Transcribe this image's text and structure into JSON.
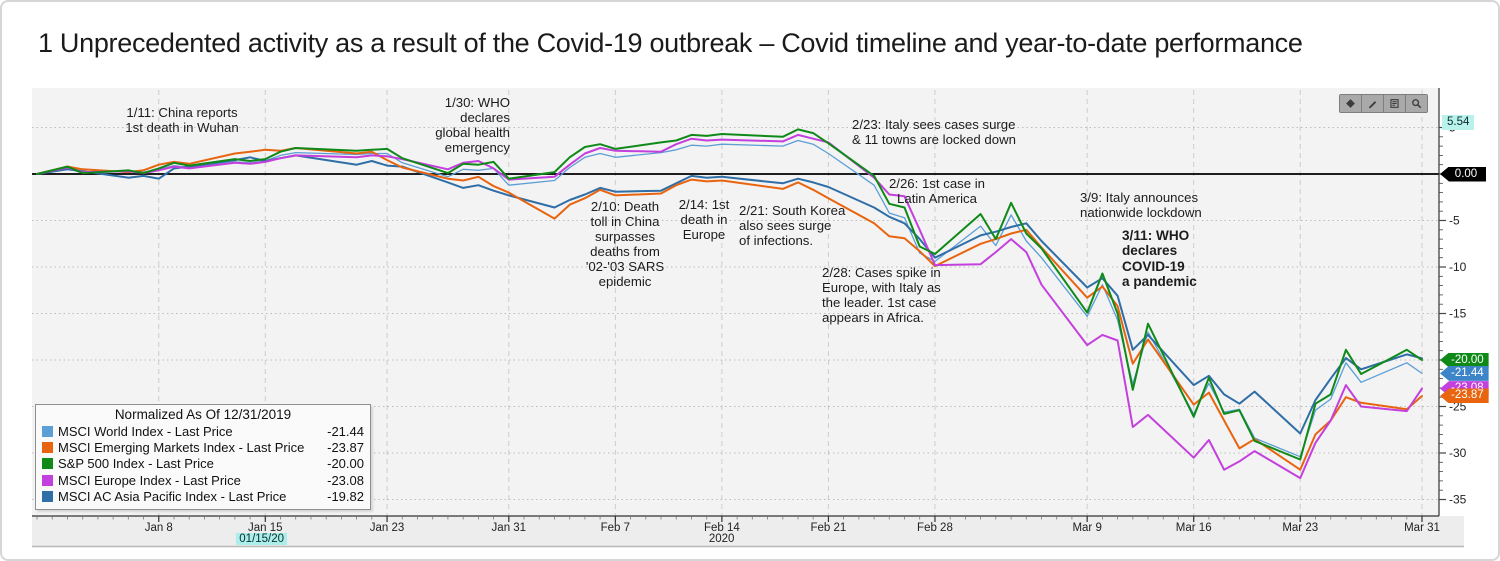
{
  "title": "1 Unprecedented activity as a result of the Covid-19 outbreak – Covid timeline and year-to-date performance",
  "toolbar": {
    "icons": [
      "diamond-icon",
      "pencil-icon",
      "note-icon",
      "magnifier-icon"
    ]
  },
  "annotations": [
    {
      "id": "1/11",
      "text": "1/11: China reports\n1st death in Wuhan"
    },
    {
      "id": "1/30",
      "text": "1/30: WHO\ndeclares\nglobal health\nemergency"
    },
    {
      "id": "2/10",
      "text": "2/10: Death\ntoll in China\nsurpasses\ndeaths from\n'02-'03 SARS\nepidemic"
    },
    {
      "id": "2/14",
      "text": "2/14: 1st\ndeath in\nEurope"
    },
    {
      "id": "2/21",
      "text": "2/21: South Korea\nalso sees surge\nof infections."
    },
    {
      "id": "2/23",
      "text": "2/23: Italy sees cases surge\n& 11 towns are locked down"
    },
    {
      "id": "2/26",
      "text": "2/26: 1st case in\nLatin America"
    },
    {
      "id": "2/28",
      "text": "2/28: Cases spike in\nEurope, with Italy as\nthe leader. 1st case\nappears in Africa."
    },
    {
      "id": "3/9",
      "text": "3/9: Italy announces\nnationwide lockdown"
    },
    {
      "id": "3/11",
      "text": "3/11: WHO\ndeclares\nCOVID-19\na pandemic"
    }
  ],
  "legend": {
    "title": "Normalized As Of 12/31/2019",
    "rows": [
      {
        "label": "MSCI World Index - Last Price",
        "value": "-21.44",
        "color": "#5c9fd6"
      },
      {
        "label": "MSCI Emerging Markets Index - Last Price",
        "value": "-23.87",
        "color": "#e8640e"
      },
      {
        "label": "S&P 500 Index - Last Price",
        "value": "-20.00",
        "color": "#0f8a19"
      },
      {
        "label": "MSCI Europe Index - Last Price",
        "value": "-23.08",
        "color": "#c440dd"
      },
      {
        "label": "MSCI AC Asia Pacific Index - Last Price",
        "value": "-19.82",
        "color": "#2f6ea6"
      }
    ]
  },
  "chart_data": {
    "type": "line",
    "title": "Covid timeline and year-to-date performance",
    "normalized_as_of": "12/31/2019",
    "ylim": [
      -35,
      5.54
    ],
    "x": [
      "12/31",
      "1/2",
      "1/3",
      "1/6",
      "1/7",
      "1/8",
      "1/9",
      "1/10",
      "1/13",
      "1/14",
      "1/15",
      "1/16",
      "1/17",
      "1/21",
      "1/22",
      "1/23",
      "1/24",
      "1/27",
      "1/28",
      "1/29",
      "1/30",
      "1/31",
      "2/3",
      "2/4",
      "2/5",
      "2/6",
      "2/7",
      "2/10",
      "2/11",
      "2/12",
      "2/13",
      "2/14",
      "2/18",
      "2/19",
      "2/20",
      "2/21",
      "2/24",
      "2/25",
      "2/26",
      "2/27",
      "2/28",
      "3/2",
      "3/3",
      "3/4",
      "3/5",
      "3/6",
      "3/9",
      "3/10",
      "3/11",
      "3/12",
      "3/13",
      "3/16",
      "3/17",
      "3/18",
      "3/19",
      "3/20",
      "3/23",
      "3/24",
      "3/25",
      "3/26",
      "3/27",
      "3/30",
      "3/31"
    ],
    "series": [
      {
        "name": "MSCI World Index - Last Price",
        "color": "#5c9fd6",
        "width": 1.3,
        "z": 1,
        "last": -21.44,
        "values": [
          0,
          0.6,
          0.1,
          0.3,
          0.2,
          0.5,
          0.9,
          0.7,
          1.3,
          1.2,
          1.4,
          2.0,
          2.3,
          2.1,
          2.2,
          2.2,
          1.2,
          -0.3,
          0.5,
          0.4,
          0.6,
          -1.2,
          -0.7,
          0.7,
          1.8,
          2.2,
          1.8,
          2.3,
          2.6,
          3.1,
          3.0,
          3.2,
          3.0,
          3.6,
          3.2,
          2.2,
          -1.2,
          -4.2,
          -4.7,
          -8.5,
          -9.4,
          -5.6,
          -7.7,
          -4.4,
          -7.2,
          -9.0,
          -15.3,
          -11.9,
          -15.7,
          -22.6,
          -17.0,
          -25.8,
          -22.5,
          -25.6,
          -25.3,
          -28.4,
          -30.4,
          -25.4,
          -24.2,
          -20.3,
          -22.4,
          -20.3,
          -21.44
        ]
      },
      {
        "name": "MSCI AC Asia Pacific Index - Last Price",
        "color": "#2f6ea6",
        "width": 2,
        "z": 2,
        "last": -19.82,
        "values": [
          0,
          0.5,
          0.3,
          -0.4,
          -0.2,
          -0.5,
          0.6,
          0.8,
          1.5,
          1.8,
          1.4,
          1.7,
          2.0,
          1.0,
          1.4,
          0.9,
          0.8,
          -0.9,
          -1.5,
          -1.2,
          -1.8,
          -2.3,
          -3.6,
          -2.8,
          -2.2,
          -1.5,
          -1.9,
          -1.8,
          -1.0,
          -0.2,
          -0.4,
          -0.3,
          -1.0,
          -0.5,
          -0.9,
          -1.4,
          -3.6,
          -4.6,
          -5.3,
          -7.0,
          -9.0,
          -6.6,
          -6.2,
          -5.7,
          -5.3,
          -7.2,
          -12.2,
          -11.2,
          -13.1,
          -18.9,
          -17.3,
          -22.7,
          -21.7,
          -23.7,
          -24.7,
          -23.4,
          -27.9,
          -24.3,
          -22.0,
          -19.8,
          -21.0,
          -19.4,
          -19.82
        ]
      },
      {
        "name": "MSCI Emerging Markets Index - Last Price",
        "color": "#e8640e",
        "width": 2,
        "z": 3,
        "last": -23.87,
        "values": [
          0,
          0.8,
          0.5,
          0.2,
          0.4,
          1.0,
          1.3,
          1.1,
          2.2,
          2.4,
          2.6,
          2.5,
          2.8,
          2.2,
          2.4,
          1.5,
          0.7,
          -0.5,
          -0.7,
          -0.3,
          -1.3,
          -2.0,
          -4.8,
          -3.3,
          -2.6,
          -1.7,
          -2.3,
          -2.1,
          -1.2,
          -0.6,
          -0.8,
          -0.7,
          -1.6,
          -0.9,
          -1.7,
          -2.6,
          -5.3,
          -6.7,
          -6.9,
          -8.3,
          -9.9,
          -7.5,
          -7.0,
          -6.4,
          -6.0,
          -7.9,
          -13.3,
          -12.1,
          -14.2,
          -20.4,
          -17.8,
          -24.8,
          -23.5,
          -26.5,
          -29.5,
          -28.5,
          -31.8,
          -28.0,
          -26.5,
          -24.0,
          -24.6,
          -25.3,
          -23.87
        ]
      },
      {
        "name": "MSCI Europe Index - Last Price",
        "color": "#c440dd",
        "width": 2,
        "z": 4,
        "last": -23.08,
        "values": [
          0,
          0.7,
          0.2,
          0.3,
          0.1,
          0.4,
          0.8,
          0.6,
          1.2,
          1.1,
          1.3,
          1.7,
          2.0,
          1.8,
          2.0,
          1.9,
          1.6,
          0.5,
          1.2,
          1.4,
          0.6,
          -0.6,
          -0.3,
          1.0,
          2.2,
          2.8,
          2.5,
          2.4,
          3.2,
          3.8,
          3.6,
          3.7,
          3.5,
          4.2,
          3.8,
          3.4,
          -0.4,
          -2.2,
          -2.4,
          -6.0,
          -9.8,
          -9.7,
          -8.4,
          -7.0,
          -8.4,
          -11.9,
          -18.4,
          -17.3,
          -17.9,
          -27.2,
          -25.9,
          -30.5,
          -28.6,
          -31.8,
          -30.9,
          -29.8,
          -32.7,
          -28.9,
          -26.5,
          -22.7,
          -25.0,
          -25.5,
          -23.08
        ]
      },
      {
        "name": "S&P 500 Index - Last Price",
        "color": "#0f8a19",
        "width": 2,
        "z": 5,
        "last": -20.0,
        "values": [
          0,
          0.8,
          0.1,
          0.4,
          0.1,
          0.6,
          1.2,
          0.9,
          1.6,
          1.4,
          1.6,
          2.4,
          2.8,
          2.5,
          2.6,
          2.7,
          1.7,
          0.1,
          1.1,
          1.0,
          1.3,
          -0.5,
          0.2,
          1.8,
          2.9,
          3.2,
          2.7,
          3.4,
          3.6,
          4.2,
          4.1,
          4.3,
          4.0,
          4.8,
          4.4,
          3.3,
          -0.2,
          -3.2,
          -3.6,
          -7.8,
          -8.6,
          -4.3,
          -7.0,
          -3.1,
          -6.4,
          -8.0,
          -14.9,
          -10.7,
          -15.0,
          -23.2,
          -16.1,
          -26.1,
          -21.9,
          -25.8,
          -25.4,
          -28.7,
          -30.7,
          -24.7,
          -23.7,
          -18.9,
          -21.5,
          -18.9,
          -20.0
        ]
      }
    ],
    "x_axis": {
      "ticks": [
        {
          "date": "1/8",
          "label": "Jan 8"
        },
        {
          "date": "1/15",
          "label": "Jan 15"
        },
        {
          "date": "1/23",
          "label": "Jan 23"
        },
        {
          "date": "1/31",
          "label": "Jan 31"
        },
        {
          "date": "2/7",
          "label": "Feb 7"
        },
        {
          "date": "2/14",
          "label": "Feb 14"
        },
        {
          "date": "2/21",
          "label": "Feb 21"
        },
        {
          "date": "2/28",
          "label": "Feb 28"
        },
        {
          "date": "3/9",
          "label": "Mar 9"
        },
        {
          "date": "3/16",
          "label": "Mar 16"
        },
        {
          "date": "3/23",
          "label": "Mar 23"
        },
        {
          "date": "3/31",
          "label": "Mar 31"
        }
      ],
      "highlighted_date": {
        "date": "1/15",
        "label": "01/15/20"
      },
      "year_label": "2020",
      "year_anchor": "2/14"
    },
    "y_axis": {
      "gridline_values": [
        5,
        -5,
        -10,
        -15,
        -20,
        -25,
        -30,
        -35
      ],
      "labels": [
        {
          "v": 5,
          "label": "5"
        },
        {
          "v": -5,
          "label": "-5"
        },
        {
          "v": -10,
          "label": "-10"
        },
        {
          "v": -15,
          "label": "-15"
        },
        {
          "v": -25,
          "label": "-25"
        },
        {
          "v": -30,
          "label": "-30"
        },
        {
          "v": -35,
          "label": "-35"
        }
      ],
      "badges": [
        {
          "value": "5.54",
          "at": 5.54,
          "bg": "#b9f1ec",
          "fg": "#0c2b2b",
          "shape": "flat"
        },
        {
          "value": "0.00",
          "at": 0,
          "bg": "#000000",
          "fg": "#ffffff",
          "shape": "tag"
        },
        {
          "value": "-20.00",
          "at": -20.0,
          "bg": "#0f8a19",
          "fg": "#ffffff",
          "shape": "tag"
        },
        {
          "value": "-21.44",
          "at": -21.44,
          "bg": "#3d85c8",
          "fg": "#ffffff",
          "shape": "tag"
        },
        {
          "value": "-23.08",
          "at": -23.08,
          "bg": "#c440dd",
          "fg": "#ffffff",
          "shape": "tag"
        },
        {
          "value": "-23.87",
          "at": -23.87,
          "bg": "#e8640e",
          "fg": "#ffffff",
          "shape": "tag"
        }
      ],
      "zero_line": "0.00"
    }
  }
}
